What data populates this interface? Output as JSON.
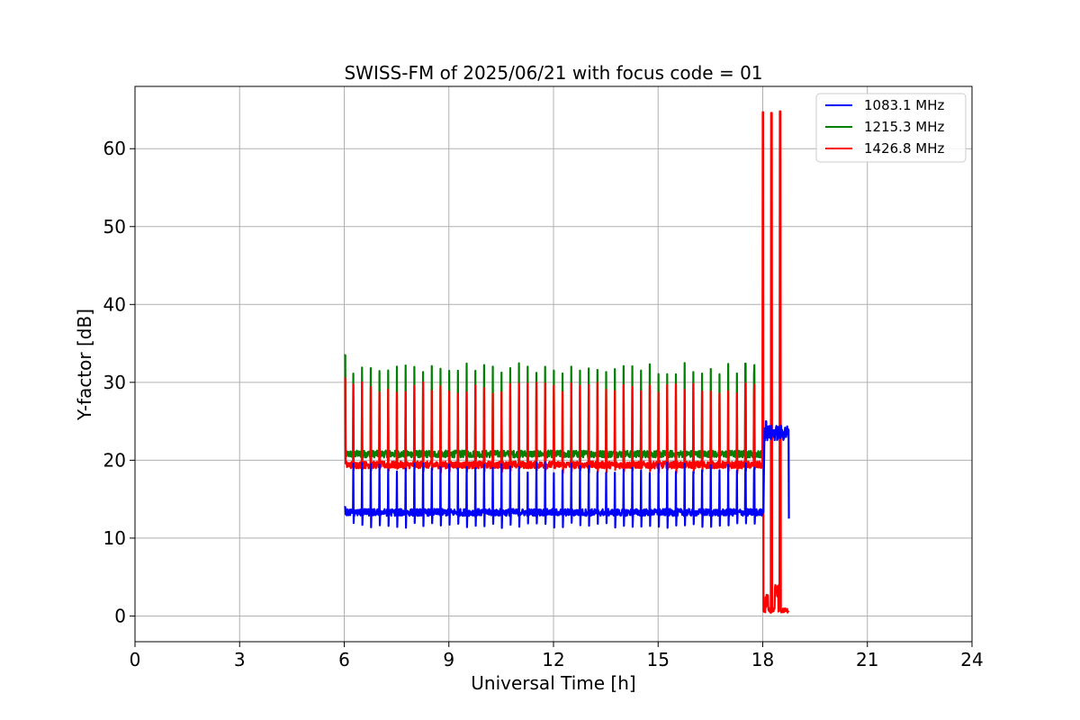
{
  "chart_data": {
    "type": "line",
    "title": "SWISS-FM of 2025/06/21 with focus code = 01",
    "xlabel": "Universal Time [h]",
    "ylabel": "Y-factor [dB]",
    "xlim": [
      0,
      24
    ],
    "ylim": [
      -3.3,
      68
    ],
    "xticks": [
      0,
      3,
      6,
      9,
      12,
      15,
      18,
      21,
      24
    ],
    "yticks": [
      0,
      10,
      20,
      30,
      40,
      50,
      60
    ],
    "xtick_labels": [
      "0",
      "3",
      "6",
      "9",
      "12",
      "15",
      "18",
      "21",
      "24"
    ],
    "ytick_labels": [
      "0",
      "10",
      "20",
      "30",
      "40",
      "50",
      "60"
    ],
    "grid": true,
    "legend_position": "top-right",
    "series": [
      {
        "name": "1083.1 MHz",
        "color": "#0000ff",
        "baseline": 13.3,
        "spike_low": 11.2,
        "spike_high": 19.8,
        "pattern": "periodic calibration spikes every 0.25 h from 6.0 h to 18.0 h",
        "late_segment": {
          "start": 18.05,
          "end": 18.75,
          "level": 23.5,
          "min": 12.5,
          "max": 25.0
        },
        "points": [
          [
            6.0,
            14.0
          ],
          [
            6.1,
            13.6
          ],
          [
            12.0,
            13.2
          ],
          [
            15.0,
            13.1
          ],
          [
            18.0,
            13.3
          ],
          [
            18.1,
            24.5
          ],
          [
            18.5,
            23.5
          ],
          [
            18.75,
            12.5
          ]
        ]
      },
      {
        "name": "1215.3 MHz",
        "color": "#008000",
        "baseline": 20.8,
        "spike_low": 19.5,
        "spike_high": 32.5,
        "pattern": "periodic calibration spikes every 0.25 h from 6.0 h to 18.0 h",
        "points": [
          [
            6.0,
            33.5
          ],
          [
            6.05,
            21.3
          ],
          [
            9.0,
            20.8
          ],
          [
            12.0,
            20.8
          ],
          [
            15.0,
            20.8
          ],
          [
            17.8,
            20.8
          ]
        ]
      },
      {
        "name": "1426.8 MHz",
        "color": "#ff0000",
        "baseline": 19.4,
        "spike_low": 18.3,
        "spike_high": 30.0,
        "pattern": "periodic calibration spikes every 0.25 h from 6.0 h to 18.0 h",
        "late_spikes": [
          [
            18.0,
            64.7
          ],
          [
            18.25,
            64.6
          ],
          [
            18.5,
            64.8
          ]
        ],
        "late_segment": {
          "start": 18.0,
          "end": 18.75,
          "level": 0.4,
          "max": 4.0
        },
        "points": [
          [
            6.0,
            30.5
          ],
          [
            6.05,
            19.5
          ],
          [
            12.0,
            19.3
          ],
          [
            15.0,
            19.3
          ],
          [
            17.95,
            19.4
          ],
          [
            18.0,
            64.7
          ],
          [
            18.1,
            2.5
          ],
          [
            18.5,
            4.0
          ],
          [
            18.75,
            0.5
          ]
        ]
      }
    ]
  }
}
